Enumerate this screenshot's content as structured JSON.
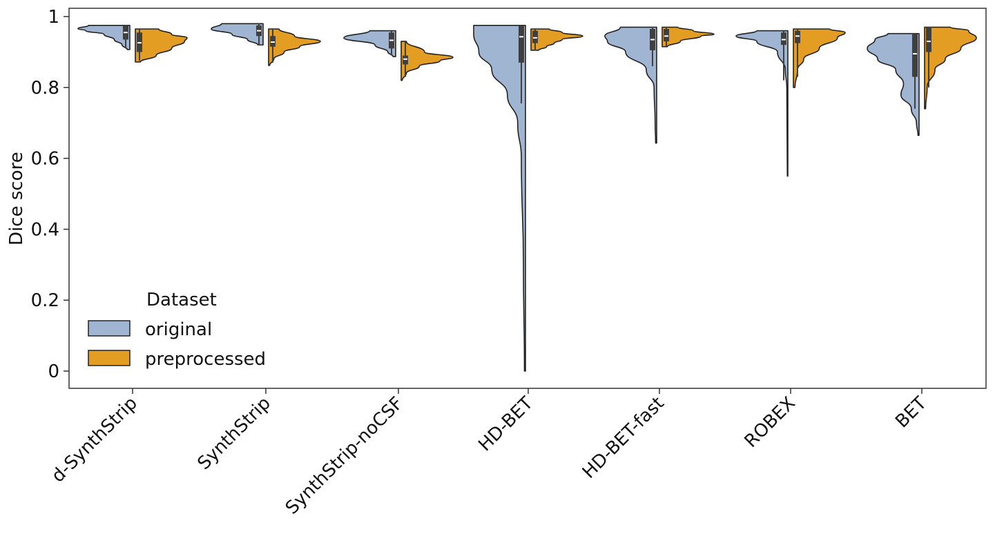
{
  "chart_data": {
    "type": "violin",
    "split": true,
    "ylabel": "Dice score",
    "xlabel": "",
    "ylim": [
      -0.05,
      1.025
    ],
    "yticks": [
      0,
      0.2,
      0.4,
      0.6,
      0.8,
      1
    ],
    "ytick_labels": [
      "0",
      "0.2",
      "0.4",
      "0.6",
      "0.8",
      "1"
    ],
    "grid": false,
    "categories": [
      "d-SynthStrip",
      "SynthStrip",
      "SynthStrip-noCSF",
      "HD-BET",
      "HD-BET-fast",
      "ROBEX",
      "BET"
    ],
    "legend": {
      "title": "Dataset",
      "placement": "lower-left"
    },
    "series": [
      {
        "name": "original",
        "color": "#9fb5d2",
        "violins": [
          {
            "density": [
              [
                0.907,
                0.05
              ],
              [
                0.92,
                0.15
              ],
              [
                0.935,
                0.3
              ],
              [
                0.95,
                0.5
              ],
              [
                0.96,
                0.85
              ],
              [
                0.966,
                1
              ],
              [
                0.975,
                0.8
              ]
            ],
            "box": {
              "whisker_low": 0.91,
              "q1": 0.935,
              "median": 0.955,
              "q3": 0.975,
              "whisker_high": 0.975
            }
          },
          {
            "density": [
              [
                0.92,
                0.1
              ],
              [
                0.935,
                0.3
              ],
              [
                0.95,
                0.6
              ],
              [
                0.965,
                1
              ],
              [
                0.98,
                0.8
              ]
            ],
            "box": {
              "whisker_low": 0.92,
              "q1": 0.945,
              "median": 0.96,
              "q3": 0.975,
              "whisker_high": 0.98
            }
          },
          {
            "density": [
              [
                0.887,
                0.05
              ],
              [
                0.9,
                0.15
              ],
              [
                0.92,
                0.4
              ],
              [
                0.94,
                1
              ],
              [
                0.96,
                0.5
              ]
            ],
            "box": {
              "whisker_low": 0.89,
              "q1": 0.91,
              "median": 0.933,
              "q3": 0.955,
              "whisker_high": 0.96
            }
          },
          {
            "density": [
              [
                0,
                0.02
              ],
              [
                0.3,
                0.04
              ],
              [
                0.6,
                0.08
              ],
              [
                0.7,
                0.15
              ],
              [
                0.78,
                0.35
              ],
              [
                0.85,
                0.65
              ],
              [
                0.9,
                0.9
              ],
              [
                0.95,
                1
              ],
              [
                0.975,
                1
              ]
            ],
            "box": {
              "whisker_low": 0.755,
              "q1": 0.87,
              "median": 0.943,
              "q3": 0.975,
              "whisker_high": 0.975
            }
          },
          {
            "density": [
              [
                0.643,
                0.02
              ],
              [
                0.7,
                0.03
              ],
              [
                0.8,
                0.05
              ],
              [
                0.85,
                0.2
              ],
              [
                0.9,
                0.6
              ],
              [
                0.93,
                0.95
              ],
              [
                0.945,
                1
              ],
              [
                0.97,
                0.7
              ]
            ],
            "box": {
              "whisker_low": 0.86,
              "q1": 0.905,
              "median": 0.935,
              "q3": 0.965,
              "whisker_high": 0.97
            }
          },
          {
            "density": [
              [
                0.55,
                0.01
              ],
              [
                0.8,
                0.02
              ],
              [
                0.85,
                0.05
              ],
              [
                0.9,
                0.2
              ],
              [
                0.93,
                0.6
              ],
              [
                0.945,
                1
              ],
              [
                0.96,
                0.6
              ]
            ],
            "box": {
              "whisker_low": 0.82,
              "q1": 0.92,
              "median": 0.935,
              "q3": 0.955,
              "whisker_high": 0.96
            }
          },
          {
            "density": [
              [
                0.665,
                0.02
              ],
              [
                0.7,
                0.05
              ],
              [
                0.74,
                0.15
              ],
              [
                0.78,
                0.35
              ],
              [
                0.81,
                0.3
              ],
              [
                0.85,
                0.45
              ],
              [
                0.88,
                0.8
              ],
              [
                0.91,
                1
              ],
              [
                0.935,
                0.85
              ],
              [
                0.952,
                0.6
              ]
            ],
            "box": {
              "whisker_low": 0.74,
              "q1": 0.83,
              "median": 0.895,
              "q3": 0.95,
              "whisker_high": 0.952
            }
          }
        ]
      },
      {
        "name": "preprocessed",
        "color": "#e39d22",
        "violins": [
          {
            "density": [
              [
                0.872,
                0.1
              ],
              [
                0.89,
                0.4
              ],
              [
                0.91,
                0.7
              ],
              [
                0.93,
                0.95
              ],
              [
                0.94,
                1
              ],
              [
                0.95,
                0.7
              ],
              [
                0.965,
                0.45
              ]
            ],
            "box": {
              "whisker_low": 0.875,
              "q1": 0.9,
              "median": 0.926,
              "q3": 0.955,
              "whisker_high": 0.965
            }
          },
          {
            "density": [
              [
                0.862,
                0.02
              ],
              [
                0.88,
                0.1
              ],
              [
                0.9,
                0.3
              ],
              [
                0.915,
                0.6
              ],
              [
                0.93,
                1
              ],
              [
                0.945,
                0.5
              ],
              [
                0.965,
                0.2
              ]
            ],
            "box": {
              "whisker_low": 0.87,
              "q1": 0.915,
              "median": 0.928,
              "q3": 0.945,
              "whisker_high": 0.965
            }
          },
          {
            "density": [
              [
                0.82,
                0.02
              ],
              [
                0.84,
                0.1
              ],
              [
                0.86,
                0.35
              ],
              [
                0.875,
                0.75
              ],
              [
                0.885,
                1
              ],
              [
                0.9,
                0.45
              ],
              [
                0.93,
                0.1
              ]
            ],
            "box": {
              "whisker_low": 0.83,
              "q1": 0.865,
              "median": 0.88,
              "q3": 0.89,
              "whisker_high": 0.93
            }
          },
          {
            "density": [
              [
                0.905,
                0.15
              ],
              [
                0.915,
                0.3
              ],
              [
                0.925,
                0.45
              ],
              [
                0.935,
                0.6
              ],
              [
                0.945,
                1
              ],
              [
                0.955,
                0.6
              ],
              [
                0.965,
                0.35
              ]
            ],
            "box": {
              "whisker_low": 0.905,
              "q1": 0.925,
              "median": 0.94,
              "q3": 0.96,
              "whisker_high": 0.965
            }
          },
          {
            "density": [
              [
                0.915,
                0.1
              ],
              [
                0.93,
                0.35
              ],
              [
                0.945,
                0.75
              ],
              [
                0.95,
                1
              ],
              [
                0.96,
                0.6
              ],
              [
                0.97,
                0.3
              ]
            ],
            "box": {
              "whisker_low": 0.915,
              "q1": 0.93,
              "median": 0.945,
              "q3": 0.965,
              "whisker_high": 0.97
            }
          },
          {
            "density": [
              [
                0.8,
                0.03
              ],
              [
                0.85,
                0.08
              ],
              [
                0.88,
                0.2
              ],
              [
                0.91,
                0.5
              ],
              [
                0.94,
                0.85
              ],
              [
                0.955,
                1
              ],
              [
                0.965,
                0.7
              ]
            ],
            "box": {
              "whisker_low": 0.83,
              "q1": 0.925,
              "median": 0.945,
              "q3": 0.96,
              "whisker_high": 0.965
            }
          },
          {
            "density": [
              [
                0.74,
                0.02
              ],
              [
                0.8,
                0.05
              ],
              [
                0.85,
                0.2
              ],
              [
                0.88,
                0.4
              ],
              [
                0.91,
                0.7
              ],
              [
                0.94,
                1
              ],
              [
                0.96,
                0.85
              ],
              [
                0.97,
                0.5
              ]
            ],
            "box": {
              "whisker_low": 0.8,
              "q1": 0.9,
              "median": 0.93,
              "q3": 0.97,
              "whisker_high": 0.97
            }
          }
        ]
      }
    ]
  }
}
